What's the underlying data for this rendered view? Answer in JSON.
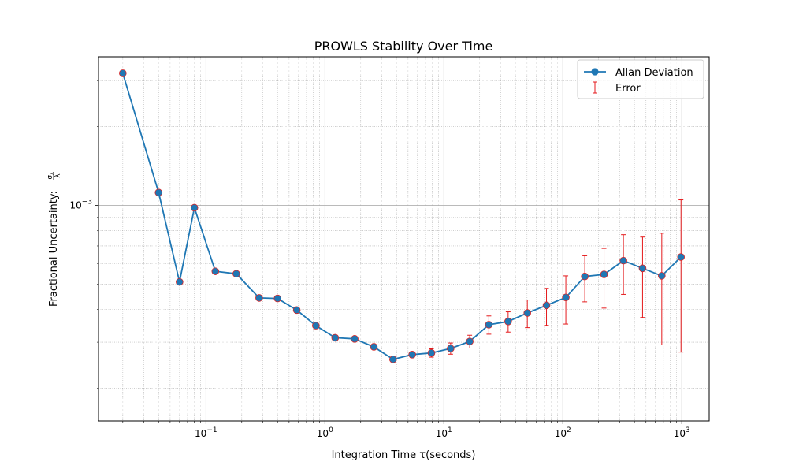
{
  "chart_data": {
    "type": "line",
    "title": "PROWLS Stability Over Time",
    "xlabel": "Integration Time τ(seconds)",
    "ylabel": "Fractional Uncertainty: σλ/λ",
    "ylabel_prefix": "Fractional Uncertainty: ",
    "ylabel_num": "σ",
    "ylabel_num_sub": "λ",
    "ylabel_den": "λ",
    "xscale": "log",
    "yscale": "log",
    "xlim": [
      0.0125,
      1700
    ],
    "ylim": [
      0.00015,
      0.0037
    ],
    "grid": "both (major solid, minor dotted)",
    "legend_position": "top-right",
    "legend": {
      "line_label": "Allan Deviation",
      "error_label": "Error"
    },
    "x_ticks": [
      {
        "value": 0.1,
        "base": "10",
        "exp": "−1"
      },
      {
        "value": 1,
        "base": "10",
        "exp": "0"
      },
      {
        "value": 10,
        "base": "10",
        "exp": "1"
      },
      {
        "value": 100,
        "base": "10",
        "exp": "2"
      },
      {
        "value": 1000,
        "base": "10",
        "exp": "3"
      }
    ],
    "y_ticks": [
      {
        "value": 0.001,
        "base": "10",
        "exp": "−3"
      }
    ],
    "colors": {
      "line": "#1f77b4",
      "marker_edge": "#d62728",
      "error": "#e41a1c",
      "grid_major": "#b0b0b0",
      "grid_minor": "#b0b0b0"
    },
    "series": [
      {
        "name": "Allan Deviation",
        "x": [
          0.02,
          0.04,
          0.06,
          0.08,
          0.12,
          0.18,
          0.28,
          0.4,
          0.58,
          0.84,
          1.22,
          1.78,
          2.58,
          3.74,
          5.42,
          7.86,
          11.4,
          16.5,
          23.9,
          34.7,
          50.3,
          72.9,
          106,
          153,
          222,
          323,
          468,
          679,
          985
        ],
        "y": [
          0.0032,
          0.00112,
          0.00051,
          0.00098,
          0.00056,
          0.000548,
          0.000443,
          0.000441,
          0.000398,
          0.000347,
          0.000312,
          0.000309,
          0.000288,
          0.000258,
          0.000269,
          0.000273,
          0.000284,
          0.000302,
          0.00035,
          0.00036,
          0.000388,
          0.000415,
          0.000445,
          0.000535,
          0.000545,
          0.000615,
          0.000575,
          0.000538,
          0.000635
        ],
        "err_low": [
          0.0032,
          0.00112,
          0.00051,
          0.00098,
          0.00056,
          0.000548,
          0.000443,
          0.000441,
          0.000398,
          0.000347,
          0.000312,
          0.000309,
          0.000288,
          0.000255,
          0.000262,
          0.000263,
          0.00027,
          0.000285,
          0.000322,
          0.000328,
          0.000341,
          0.000348,
          0.000352,
          0.000428,
          0.000405,
          0.000457,
          0.000373,
          0.000293,
          0.000275
        ],
        "err_high": [
          0.0032,
          0.00112,
          0.00051,
          0.00098,
          0.00056,
          0.000548,
          0.000443,
          0.000441,
          0.000398,
          0.000347,
          0.000312,
          0.000309,
          0.000288,
          0.000261,
          0.000276,
          0.000283,
          0.000298,
          0.000319,
          0.000378,
          0.000392,
          0.000435,
          0.000482,
          0.000538,
          0.000642,
          0.000685,
          0.000773,
          0.000757,
          0.000783,
          0.00105
        ]
      }
    ]
  }
}
